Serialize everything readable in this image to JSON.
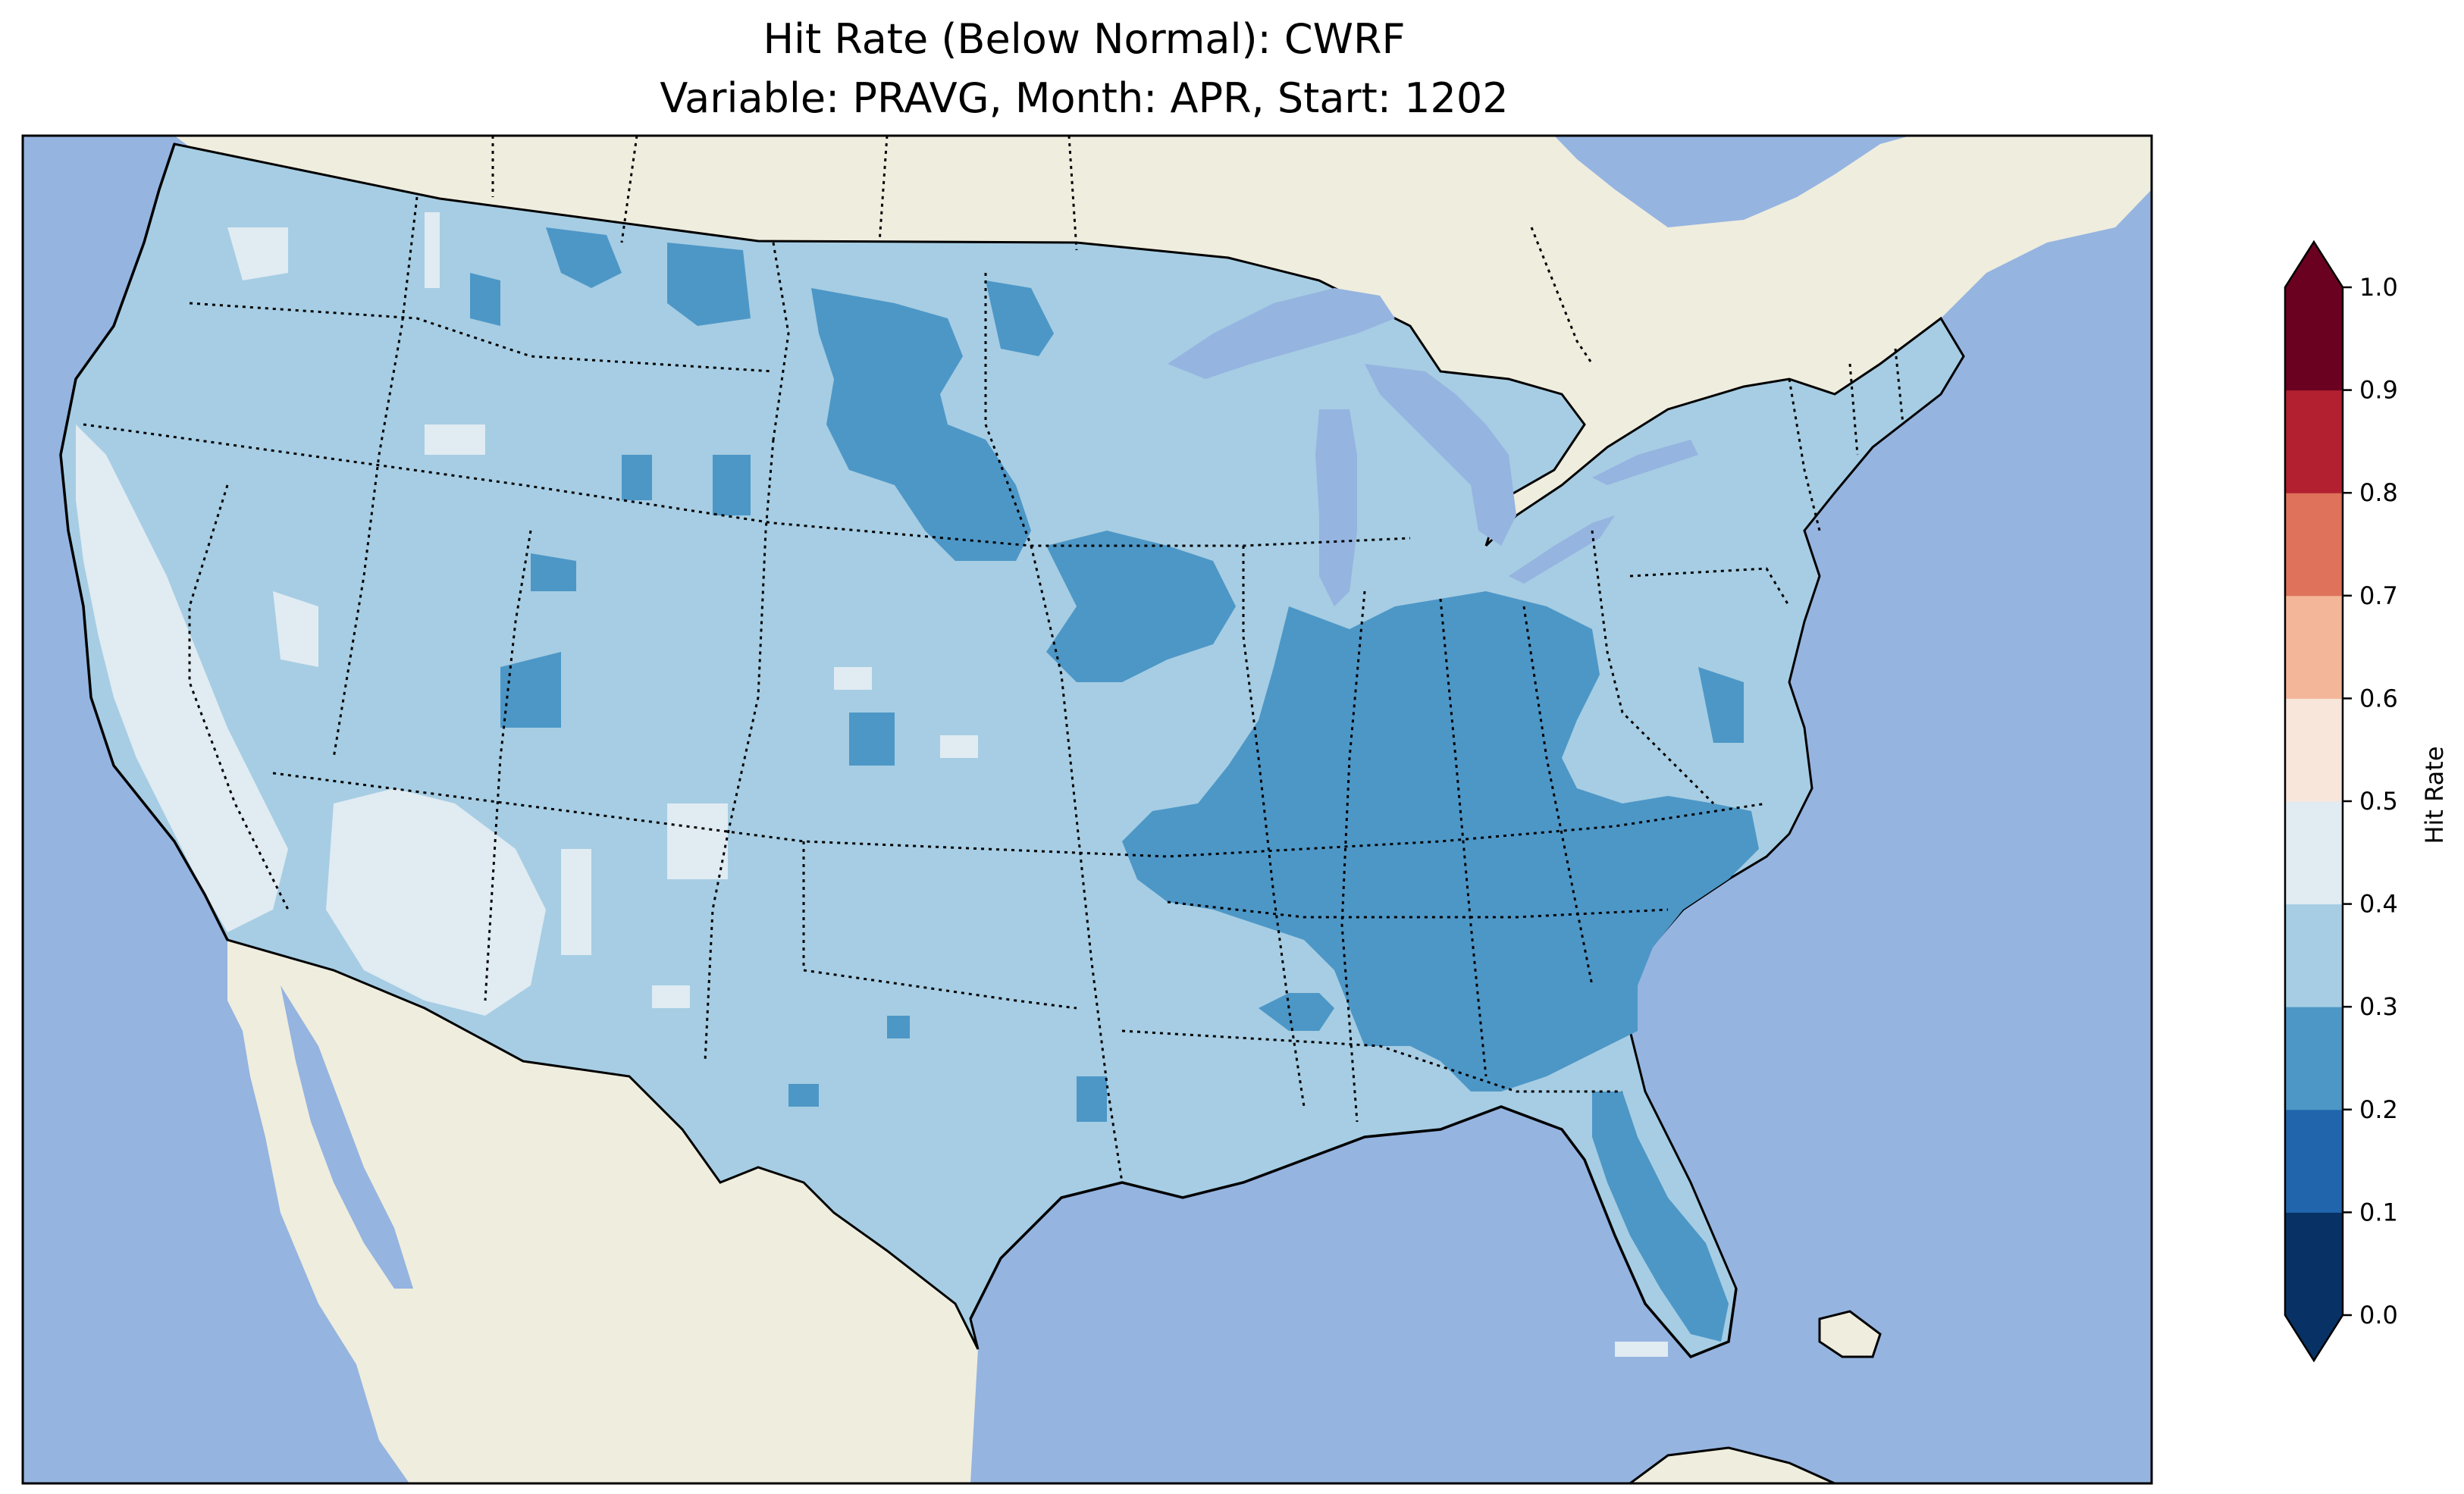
{
  "title": {
    "line1": "Hit Rate (Below Normal): CWRF",
    "line2": "Variable: PRAVG, Month: APR, Start: 1202"
  },
  "colors": {
    "ocean": "#95b4e0",
    "land": "#efedde",
    "border": "#000000"
  },
  "colorbar": {
    "label": "Hit Rate",
    "ticks": [
      "0.0",
      "0.1",
      "0.2",
      "0.3",
      "0.4",
      "0.5",
      "0.6",
      "0.7",
      "0.8",
      "0.9",
      "1.0"
    ],
    "bins": [
      {
        "range": [
          0.0,
          0.1
        ],
        "color": "#083265"
      },
      {
        "range": [
          0.1,
          0.2
        ],
        "color": "#2166ac"
      },
      {
        "range": [
          0.2,
          0.3
        ],
        "color": "#4d97c7"
      },
      {
        "range": [
          0.3,
          0.4
        ],
        "color": "#a6cde3"
      },
      {
        "range": [
          0.4,
          0.5
        ],
        "color": "#e0ebf2"
      },
      {
        "range": [
          0.5,
          0.6
        ],
        "color": "#f9e6db"
      },
      {
        "range": [
          0.6,
          0.7
        ],
        "color": "#f4b699"
      },
      {
        "range": [
          0.7,
          0.8
        ],
        "color": "#de725b"
      },
      {
        "range": [
          0.8,
          0.9
        ],
        "color": "#b3202f"
      },
      {
        "range": [
          0.9,
          1.0
        ],
        "color": "#6a0121"
      }
    ],
    "extend_under_color": "#083265",
    "extend_over_color": "#6a0121"
  },
  "map": {
    "region": "contiguous-united-states",
    "dominant_hit_rate_bin": "0.3-0.4",
    "lower_hit_rate_regions": "Ohio Valley, Southeast, Florida, Northern Plains",
    "higher_hit_rate_regions": "California, Great Basin, Southwest"
  }
}
